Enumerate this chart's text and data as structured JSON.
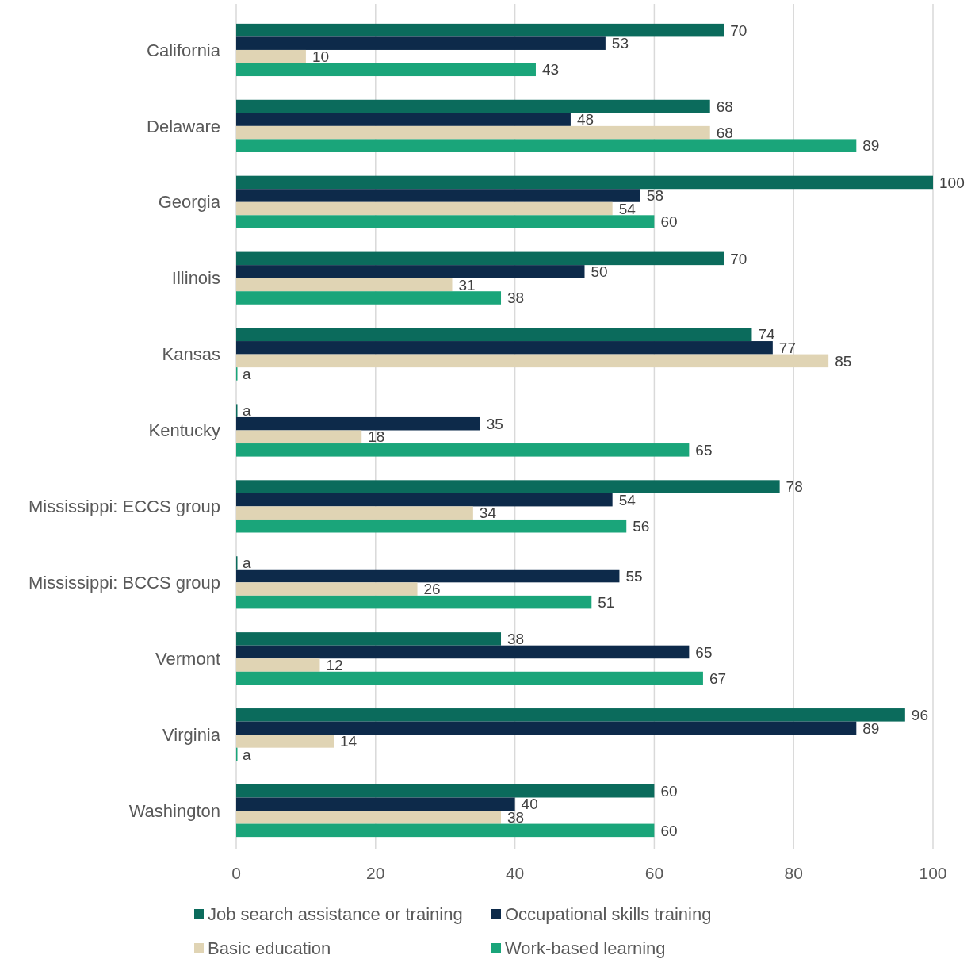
{
  "chart_data": {
    "type": "bar",
    "orientation": "horizontal",
    "categories": [
      "California",
      "Delaware",
      "Georgia",
      "Illinois",
      "Kansas",
      "Kentucky",
      "Mississippi: ECCS group",
      "Mississippi: BCCS group",
      "Vermont",
      "Virginia",
      "Washington"
    ],
    "series": [
      {
        "name": "Job search assistance or training",
        "color": "#0b6b5c",
        "values": [
          70,
          68,
          100,
          70,
          74,
          0,
          78,
          0,
          38,
          96,
          60
        ],
        "value_labels": [
          "70",
          "68",
          "100",
          "70",
          "74",
          "a",
          "78",
          "a",
          "38",
          "96",
          "60"
        ]
      },
      {
        "name": "Occupational skills training",
        "color": "#0d2a4a",
        "values": [
          53,
          48,
          58,
          50,
          77,
          35,
          54,
          55,
          65,
          89,
          40
        ],
        "value_labels": [
          "53",
          "48",
          "58",
          "50",
          "77",
          "35",
          "54",
          "55",
          "65",
          "89",
          "40"
        ]
      },
      {
        "name": "Basic education",
        "color": "#e0d4b4",
        "values": [
          10,
          68,
          54,
          31,
          85,
          18,
          34,
          26,
          12,
          14,
          38
        ],
        "value_labels": [
          "10",
          "68",
          "54",
          "31",
          "85",
          "18",
          "34",
          "26",
          "12",
          "14",
          "38"
        ]
      },
      {
        "name": "Work-based learning",
        "color": "#1aa57a",
        "values": [
          43,
          89,
          60,
          38,
          0,
          65,
          56,
          51,
          67,
          0,
          60
        ],
        "value_labels": [
          "43",
          "89",
          "60",
          "38",
          "a",
          "65",
          "56",
          "51",
          "67",
          "a",
          "60"
        ]
      }
    ],
    "xlim": [
      0,
      100
    ],
    "xticks": [
      0,
      20,
      40,
      60,
      80,
      100
    ],
    "grid": "x",
    "legend": "bottom"
  }
}
